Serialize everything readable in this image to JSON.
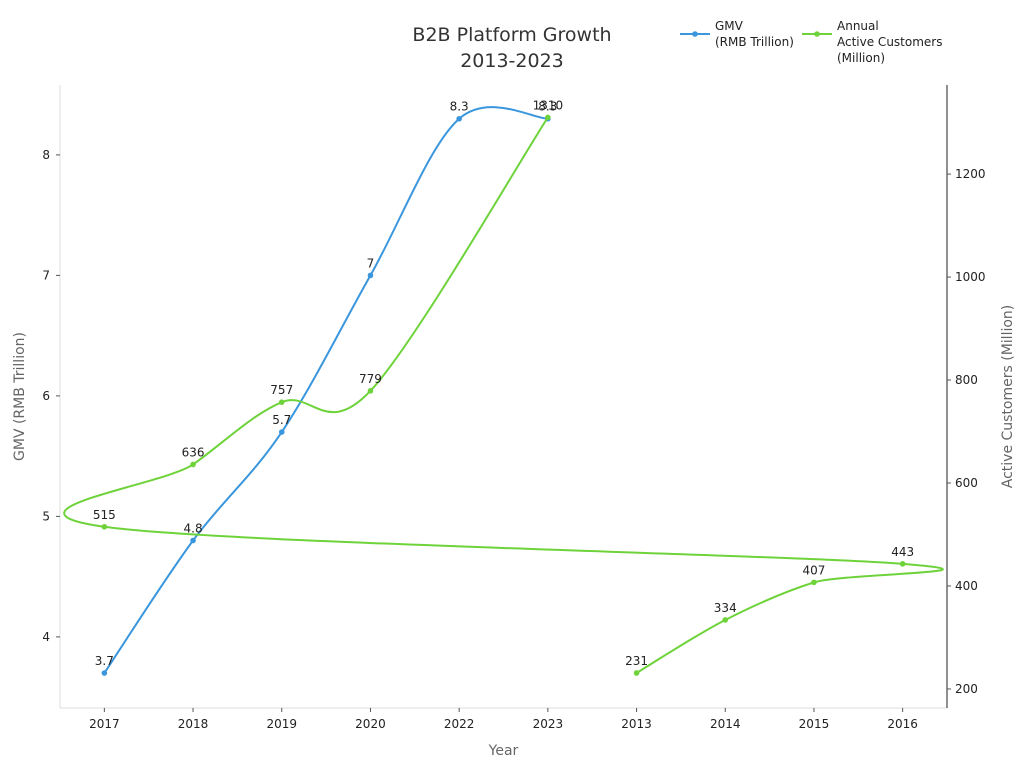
{
  "chart_data": {
    "type": "line",
    "title": "B2B Platform Growth\n2013-2023",
    "x_label": "Year",
    "y_label": "GMV (RMB Trillion)",
    "y2_label": "Active Customers (Million)",
    "categories": [
      "2017",
      "2018",
      "2019",
      "2020",
      "2022",
      "2023",
      "2013",
      "2014",
      "2015",
      "2016"
    ],
    "series": [
      {
        "name": "GMV\n(RMB Trillion)",
        "color": "#3a96dd",
        "x": [
          "2017",
          "2018",
          "2019",
          "2020",
          "2022",
          "2023"
        ],
        "values": [
          3.7,
          4.8,
          5.7,
          7,
          8.3,
          8.3
        ]
      },
      {
        "name": "Annual\nActive Customers\n(Million)",
        "color": "#6ed33a",
        "axis": "y2",
        "x": [
          "2013",
          "2014",
          "2015",
          "2016",
          "2017",
          "2018",
          "2019",
          "2020",
          "2023"
        ],
        "values": [
          231,
          334,
          407,
          443,
          515,
          636,
          757,
          779,
          1310
        ]
      }
    ],
    "ylim": [
      3.41,
      8.58
    ],
    "yticks": [
      4,
      5,
      6,
      7,
      8
    ],
    "y2lim": [
      163,
      1373
    ],
    "y2ticks": [
      200,
      400,
      600,
      800,
      1000,
      1200
    ],
    "grid": false,
    "legend": "upper right"
  }
}
